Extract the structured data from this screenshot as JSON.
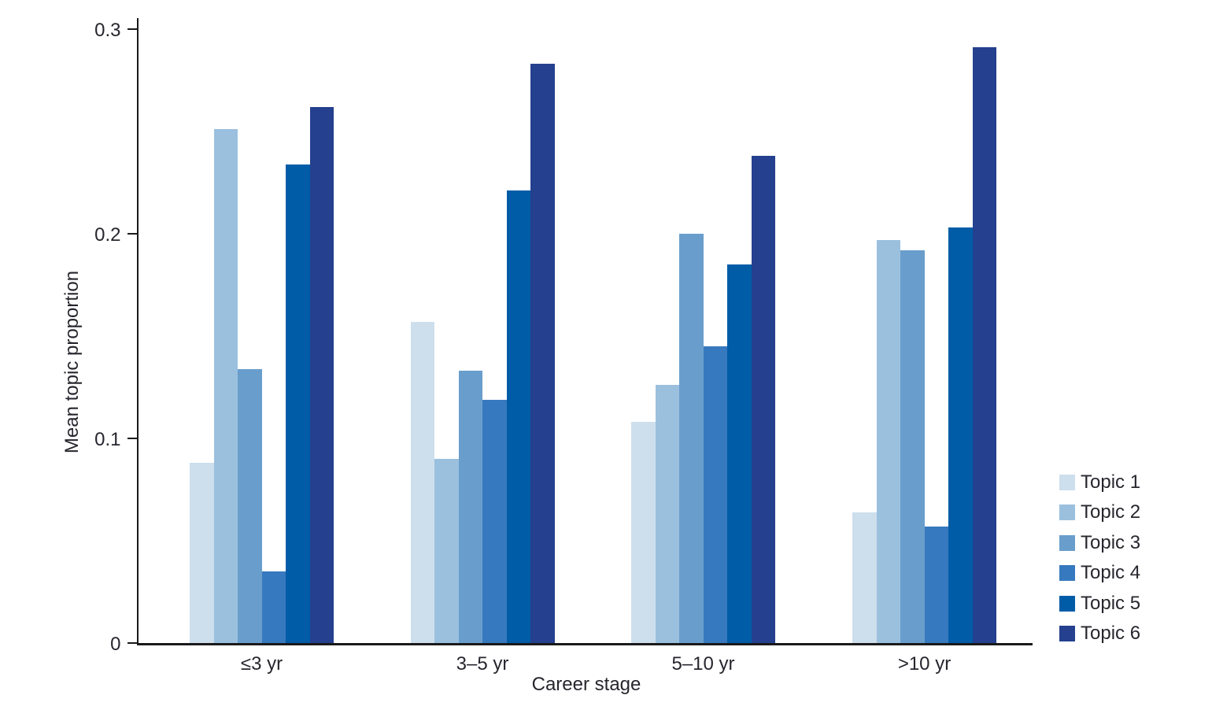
{
  "chart_data": {
    "type": "bar",
    "title": "",
    "xlabel": "Career stage",
    "ylabel": "Mean topic proportion",
    "categories": [
      "≤3 yr",
      "3–5 yr",
      "5–10 yr",
      ">10 yr"
    ],
    "series": [
      {
        "name": "Topic 1",
        "color": "#CDDEEC",
        "values": [
          0.088,
          0.157,
          0.108,
          0.064
        ]
      },
      {
        "name": "Topic 2",
        "color": "#9BC0DE",
        "values": [
          0.251,
          0.09,
          0.126,
          0.197
        ]
      },
      {
        "name": "Topic 3",
        "color": "#699ECC",
        "values": [
          0.134,
          0.133,
          0.2,
          0.192
        ]
      },
      {
        "name": "Topic 4",
        "color": "#3779BE",
        "values": [
          0.035,
          0.119,
          0.145,
          0.057
        ]
      },
      {
        "name": "Topic 5",
        "color": "#005CA7",
        "values": [
          0.234,
          0.221,
          0.185,
          0.203
        ]
      },
      {
        "name": "Topic 6",
        "color": "#24408E",
        "values": [
          0.262,
          0.283,
          0.238,
          0.291
        ]
      }
    ],
    "ylim": [
      0,
      0.3
    ],
    "yticks": [
      0,
      0.1,
      0.2,
      0.3
    ],
    "ytick_labels": [
      "0",
      "0.1",
      "0.2",
      "0.3"
    ],
    "legend_position": "right",
    "grid": false,
    "axis_color": "#1a1a1a",
    "text_color": "#26262e"
  }
}
